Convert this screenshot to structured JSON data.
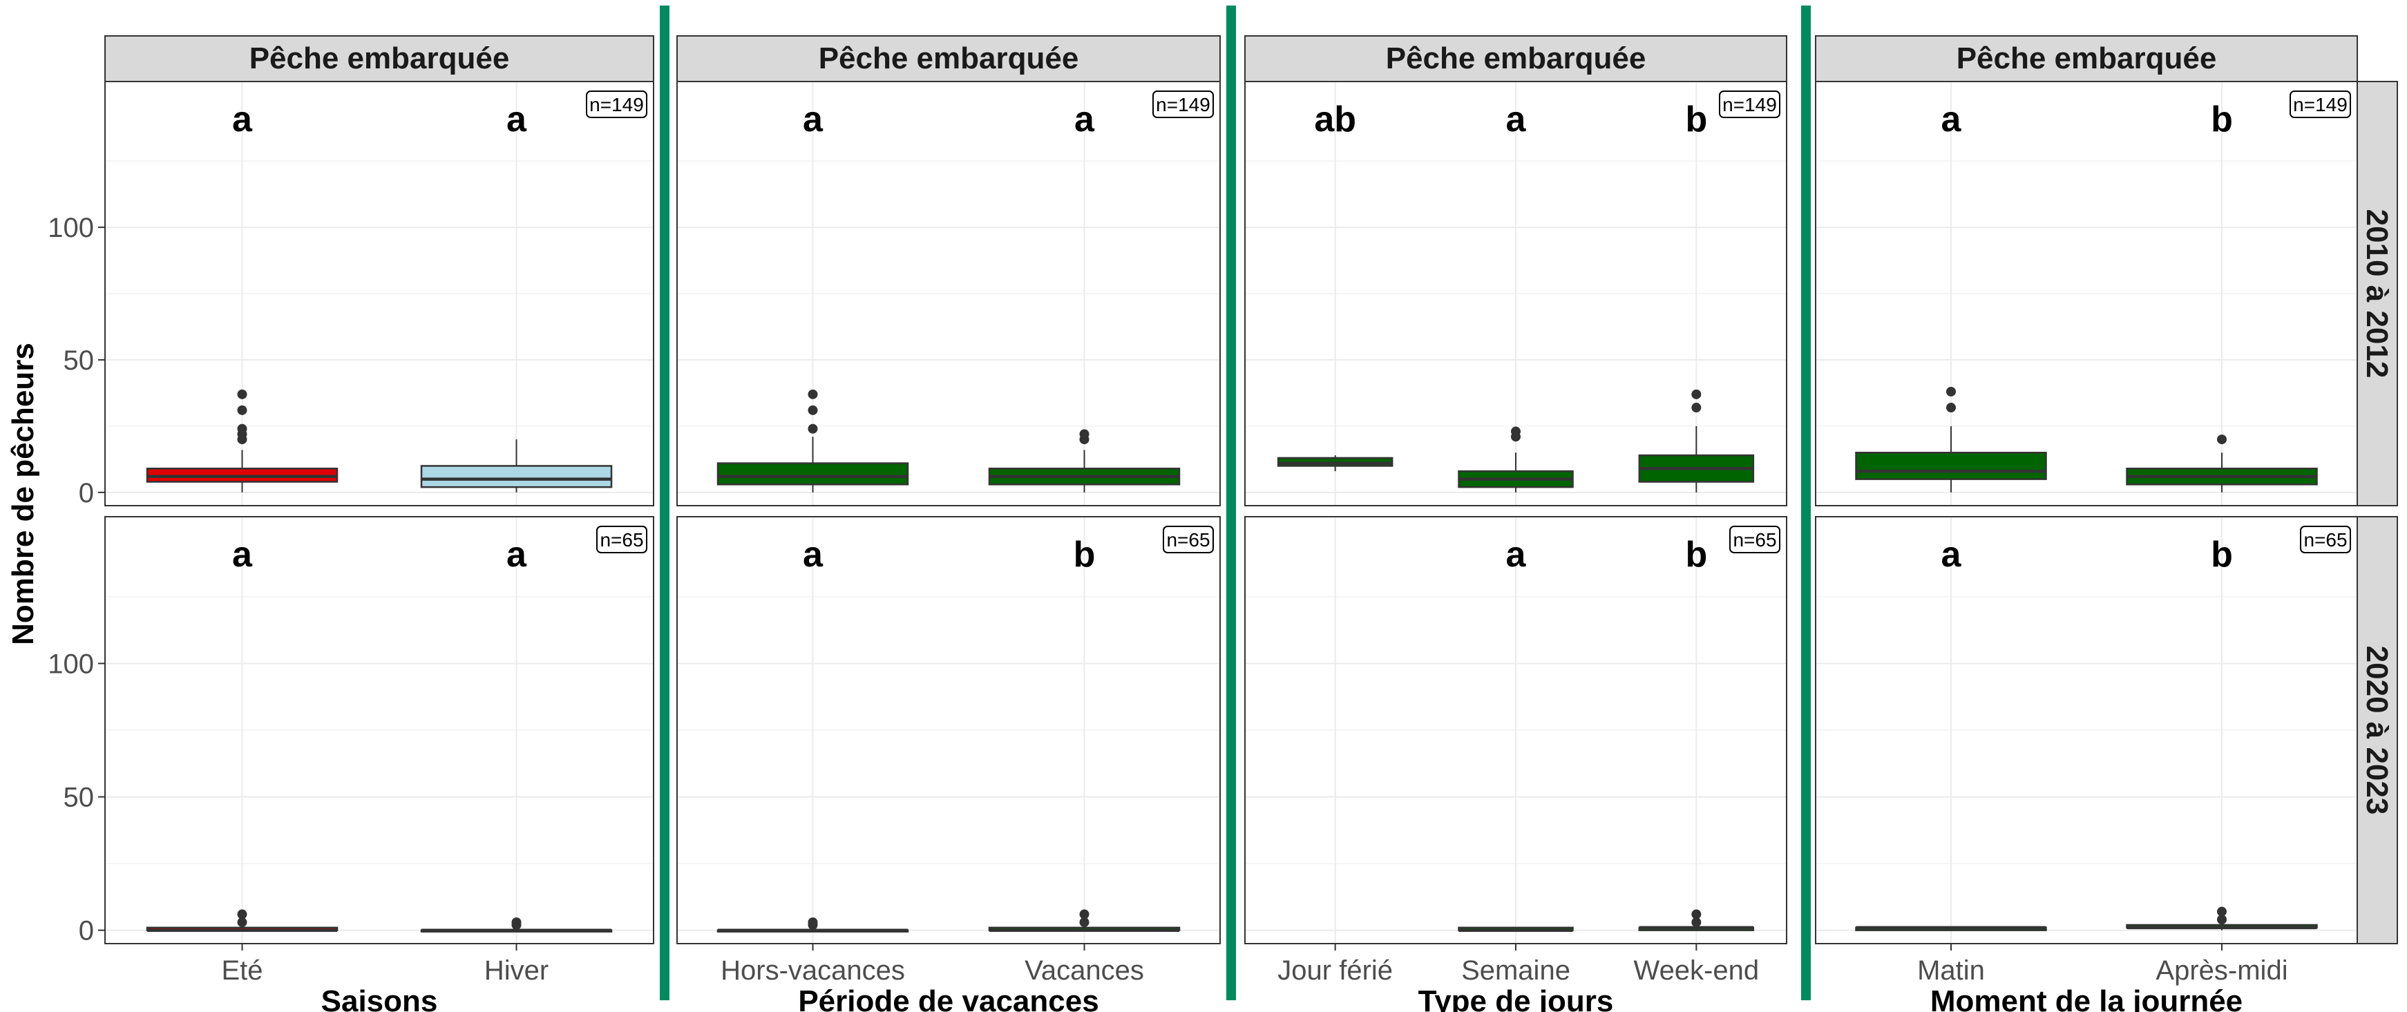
{
  "figure": {
    "y_axis_title": "Nombre de pêcheurs",
    "row_labels": [
      "2010 à 2012",
      "2020 à 2023"
    ],
    "separator_color": "#008B5E"
  },
  "chart_data": [
    {
      "type": "box",
      "title": "Pêche embarquée",
      "xlabel": "Saisons",
      "ylabel": "Nombre de pêcheurs",
      "ylim": [
        -5,
        155
      ],
      "yticks": [
        0,
        50,
        100
      ],
      "grid": true,
      "categories": [
        "Eté",
        "Hiver"
      ],
      "fill_colors": [
        "#E00000",
        "#ADD8E6"
      ],
      "panels": [
        {
          "row": "2010 à 2012",
          "n_label": "n=149",
          "letters": [
            "a",
            "a"
          ],
          "boxes": [
            {
              "min": 0,
              "q1": 4,
              "median": 6,
              "q3": 9,
              "max": 16,
              "outliers": [
                20,
                22,
                24,
                31,
                37
              ]
            },
            {
              "min": 0,
              "q1": 2,
              "median": 5,
              "q3": 10,
              "max": 20,
              "outliers": []
            }
          ]
        },
        {
          "row": "2020 à 2023",
          "n_label": "n=65",
          "letters": [
            "a",
            "a"
          ],
          "boxes": [
            {
              "min": 0,
              "q1": 0,
              "median": 0,
              "q3": 1,
              "max": 2,
              "outliers": [
                3,
                6
              ]
            },
            {
              "min": 0,
              "q1": 0,
              "median": 0,
              "q3": 0,
              "max": 1,
              "outliers": [
                2,
                3
              ]
            }
          ]
        }
      ]
    },
    {
      "type": "box",
      "title": "Pêche embarquée",
      "xlabel": "Période de vacances",
      "ylabel": "Nombre de pêcheurs",
      "ylim": [
        -5,
        155
      ],
      "yticks": [
        0,
        50,
        100
      ],
      "grid": true,
      "categories": [
        "Hors-vacances",
        "Vacances"
      ],
      "fill_colors": [
        "#006400",
        "#006400"
      ],
      "panels": [
        {
          "row": "2010 à 2012",
          "n_label": "n=149",
          "letters": [
            "a",
            "a"
          ],
          "boxes": [
            {
              "min": 0,
              "q1": 3,
              "median": 6,
              "q3": 11,
              "max": 21,
              "outliers": [
                24,
                31,
                37
              ]
            },
            {
              "min": 0,
              "q1": 3,
              "median": 6,
              "q3": 9,
              "max": 16,
              "outliers": [
                20,
                22
              ]
            }
          ]
        },
        {
          "row": "2020 à 2023",
          "n_label": "n=65",
          "letters": [
            "a",
            "b"
          ],
          "boxes": [
            {
              "min": 0,
              "q1": 0,
              "median": 0,
              "q3": 0,
              "max": 1,
              "outliers": [
                2,
                3
              ]
            },
            {
              "min": 0,
              "q1": 0,
              "median": 0,
              "q3": 1,
              "max": 2,
              "outliers": [
                3,
                6
              ]
            }
          ]
        }
      ]
    },
    {
      "type": "box",
      "title": "Pêche embarquée",
      "xlabel": "Type de jours",
      "ylabel": "Nombre de pêcheurs",
      "ylim": [
        -5,
        155
      ],
      "yticks": [
        0,
        50,
        100
      ],
      "grid": true,
      "categories": [
        "Jour férié",
        "Semaine",
        "Week-end"
      ],
      "fill_colors": [
        "#006400",
        "#006400",
        "#006400"
      ],
      "panels": [
        {
          "row": "2010 à 2012",
          "n_label": "n=149",
          "letters": [
            "ab",
            "a",
            "b"
          ],
          "boxes": [
            {
              "min": 8,
              "q1": 10,
              "median": 11,
              "q3": 13,
              "max": 14,
              "outliers": []
            },
            {
              "min": 0,
              "q1": 2,
              "median": 5,
              "q3": 8,
              "max": 15,
              "outliers": [
                21,
                23
              ]
            },
            {
              "min": 0,
              "q1": 4,
              "median": 9,
              "q3": 14,
              "max": 25,
              "outliers": [
                32,
                37
              ]
            }
          ]
        },
        {
          "row": "2020 à 2023",
          "n_label": "n=65",
          "letters": [
            "",
            "a",
            "b"
          ],
          "boxes": [
            null,
            {
              "min": 0,
              "q1": 0,
              "median": 0,
              "q3": 1,
              "max": 1,
              "outliers": []
            },
            {
              "min": 0,
              "q1": 0,
              "median": 1,
              "q3": 1,
              "max": 2,
              "outliers": [
                3,
                6
              ]
            }
          ]
        }
      ]
    },
    {
      "type": "box",
      "title": "Pêche embarquée",
      "xlabel": "Moment de la journée",
      "ylabel": "Nombre de pêcheurs",
      "ylim": [
        -5,
        155
      ],
      "yticks": [
        0,
        50,
        100
      ],
      "grid": true,
      "categories": [
        "Matin",
        "Après-midi"
      ],
      "fill_colors": [
        "#006400",
        "#006400"
      ],
      "panels": [
        {
          "row": "2010 à 2012",
          "n_label": "n=149",
          "letters": [
            "a",
            "b"
          ],
          "boxes": [
            {
              "min": 0,
              "q1": 5,
              "median": 8,
              "q3": 15,
              "max": 25,
              "outliers": [
                32,
                38
              ]
            },
            {
              "min": 0,
              "q1": 3,
              "median": 6,
              "q3": 9,
              "max": 15,
              "outliers": [
                20
              ]
            }
          ]
        },
        {
          "row": "2020 à 2023",
          "n_label": "n=65",
          "letters": [
            "a",
            "b"
          ],
          "boxes": [
            {
              "min": 0,
              "q1": 0,
              "median": 1,
              "q3": 1,
              "max": 1,
              "outliers": []
            },
            {
              "min": 0,
              "q1": 1,
              "median": 1,
              "q3": 2,
              "max": 2,
              "outliers": [
                4,
                7
              ]
            }
          ]
        }
      ]
    }
  ]
}
